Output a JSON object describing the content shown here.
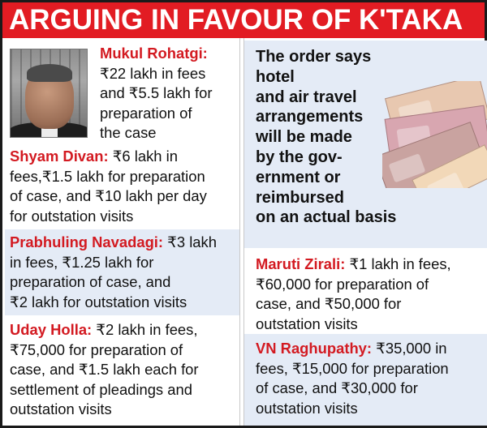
{
  "headline": "ARGUING IN FAVOUR OF K'TAKA",
  "colors": {
    "accent_red": "#e21c23",
    "name_red": "#d31a21",
    "panel_blue": "#e4ebf6"
  },
  "left_column": [
    {
      "name": "Mukul Rohatgi:",
      "lines": [
        "₹22 lakh in fees",
        "and ₹5.5 lakh for",
        "preparation of",
        "the case"
      ],
      "has_photo": true
    },
    {
      "name": "Shyam Divan:",
      "lines": [
        " ₹6 lakh in",
        "fees,₹1.5 lakh for preparation",
        "of case, and ₹10 lakh per day",
        "for outstation visits"
      ]
    },
    {
      "name": "Prabhuling Navadagi:",
      "lines": [
        " ₹3 lakh",
        "in fees, ₹1.25 lakh for",
        "preparation of case, and",
        "₹2 lakh for outstation visits"
      ]
    },
    {
      "name": "Uday Holla:",
      "lines": [
        " ₹2 lakh in fees,",
        "₹75,000 for preparation of",
        "case, and ₹1.5 lakh each for",
        "settlement of pleadings and",
        "outstation visits"
      ]
    }
  ],
  "right_column": {
    "note_lines": [
      "The order says hotel",
      "and air travel",
      "arrangements",
      "will be made",
      "by the gov-",
      "ernment or",
      "reimbursed",
      "on an actual basis"
    ],
    "entries": [
      {
        "name": "Maruti Zirali:",
        "lines": [
          " ₹1 lakh in fees,",
          "₹60,000 for preparation of",
          "case, and ₹50,000 for",
          "outstation visits"
        ]
      },
      {
        "name": "VN Raghupathy:",
        "lines": [
          " ₹35,000 in",
          "fees, ₹15,000 for preparation",
          "of case, and ₹30,000 for",
          "outstation visits"
        ]
      }
    ]
  },
  "icons": {
    "photo": "portrait-photo",
    "currency": "currency-notes-image"
  }
}
